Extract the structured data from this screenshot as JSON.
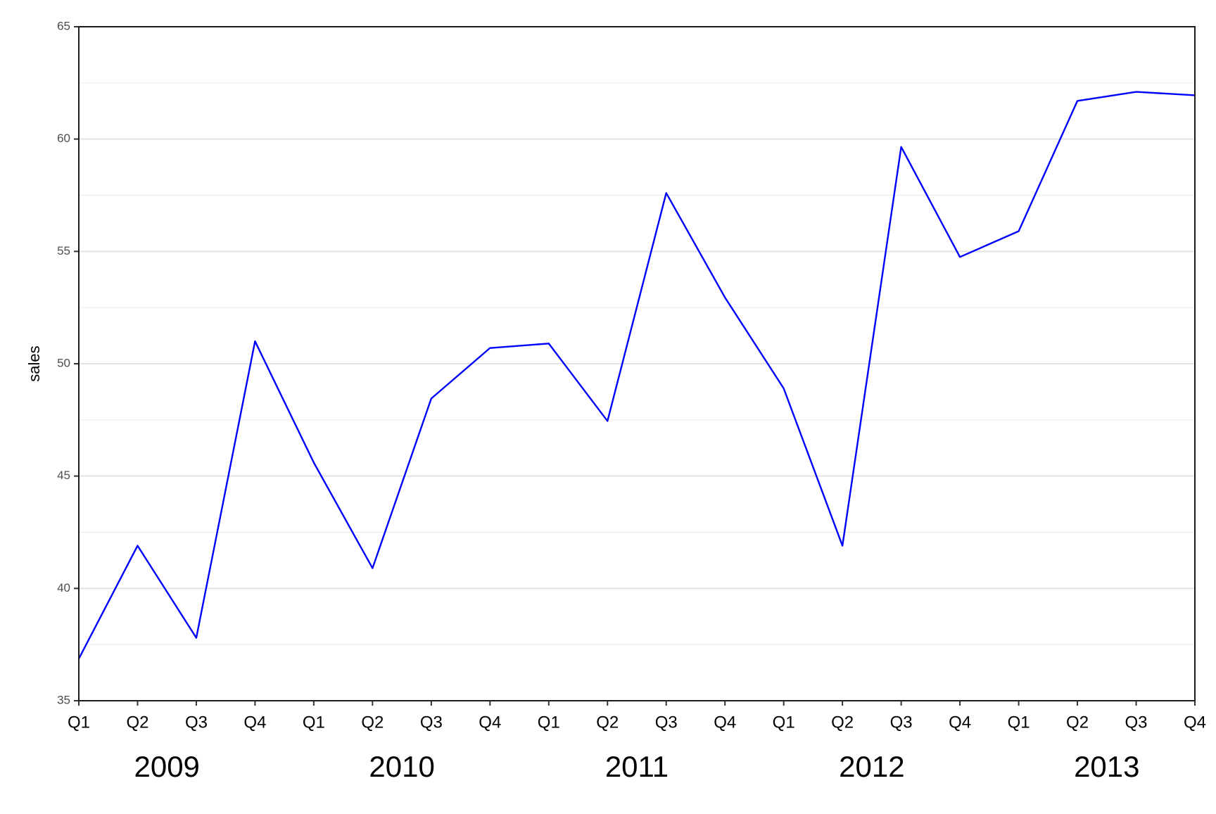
{
  "chart_data": {
    "type": "line",
    "y_label": "sales",
    "categories": [
      "Q1",
      "Q2",
      "Q3",
      "Q4",
      "Q1",
      "Q2",
      "Q3",
      "Q4",
      "Q1",
      "Q2",
      "Q3",
      "Q4",
      "Q1",
      "Q2",
      "Q3",
      "Q4",
      "Q1",
      "Q2",
      "Q3",
      "Q4"
    ],
    "groups": [
      "2009",
      "2010",
      "2011",
      "2012",
      "2013"
    ],
    "values": [
      36.87,
      41.9,
      37.8,
      51.0,
      45.6,
      40.9,
      48.45,
      50.7,
      50.9,
      47.45,
      57.6,
      52.95,
      48.9,
      41.9,
      59.65,
      54.75,
      55.9,
      61.7,
      62.1,
      61.95
    ],
    "color": "#0000ff",
    "ylim": [
      35,
      65
    ],
    "yticks": [
      35,
      40,
      45,
      50,
      55,
      60,
      65
    ],
    "minor_yticks": [
      37.5,
      42.5,
      47.5,
      52.5,
      57.5,
      62.5
    ],
    "grid": true
  }
}
